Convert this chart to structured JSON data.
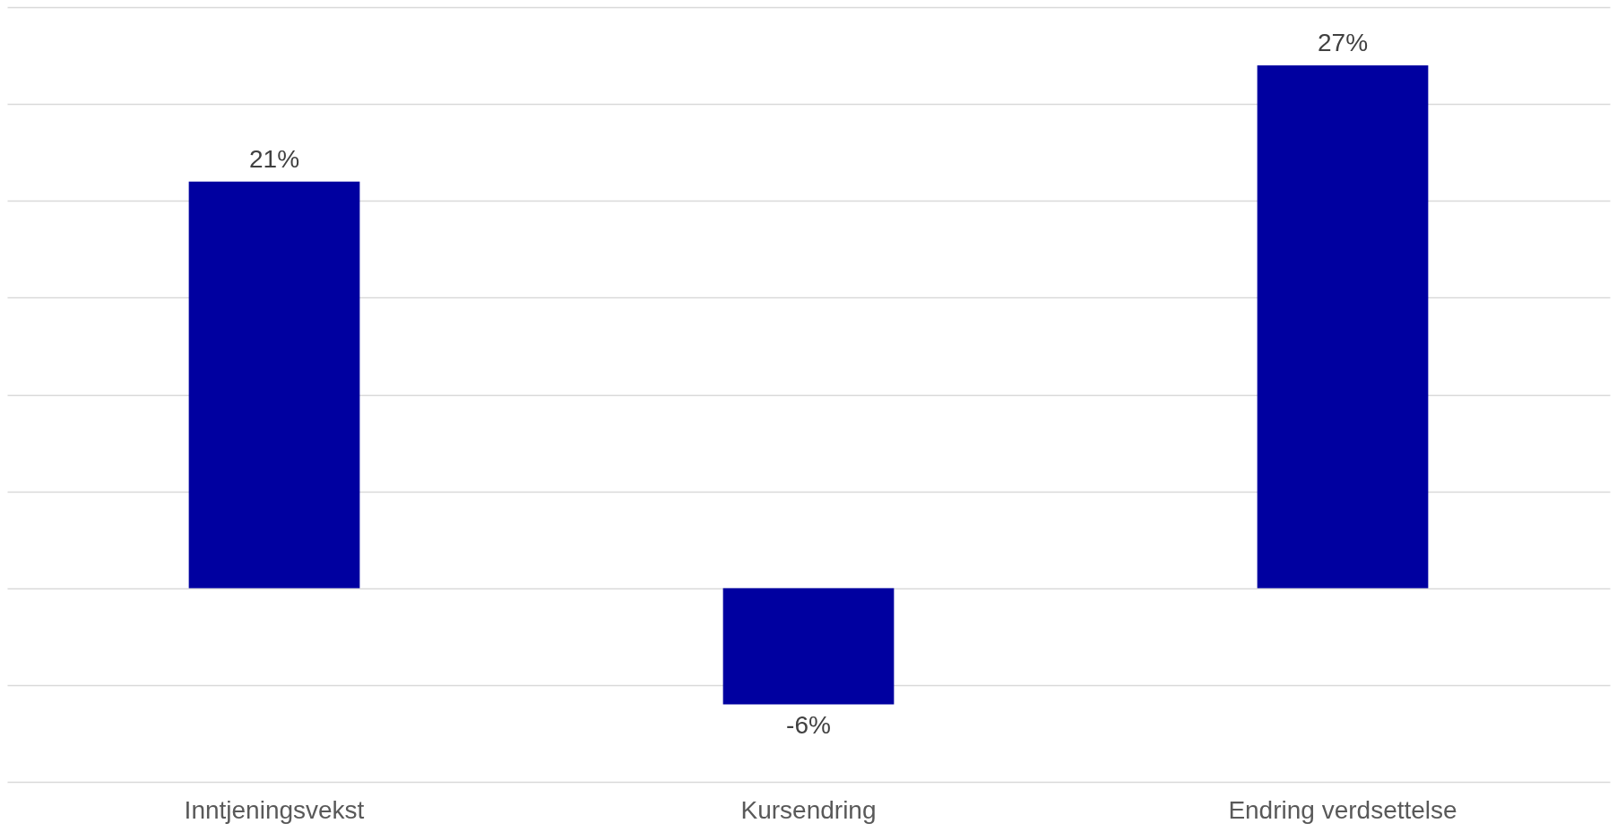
{
  "chart_data": {
    "type": "bar",
    "categories": [
      "Inntjeningsvekst",
      "Kursendring",
      "Endring verdsettelse"
    ],
    "values": [
      21,
      -6,
      27
    ],
    "color": "#0000a0",
    "value_labels": [
      "21%",
      "-6%",
      "27%"
    ],
    "ylim": [
      -10,
      30
    ],
    "yticks": [
      {
        "value": -10,
        "label": null
      },
      {
        "value": -5,
        "label": null
      },
      {
        "value": 0,
        "label": null
      },
      {
        "value": 5,
        "label": null
      },
      {
        "value": 10,
        "label": null
      },
      {
        "value": 15,
        "label": null
      },
      {
        "value": 20,
        "label": null
      },
      {
        "value": 25,
        "label": null
      },
      {
        "value": 30,
        "label": null
      }
    ],
    "grid": "y",
    "tick_labels": "x"
  }
}
